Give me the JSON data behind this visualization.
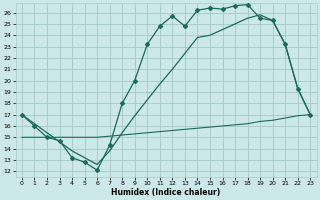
{
  "xlabel": "Humidex (Indice chaleur)",
  "bg_color": "#cde8e8",
  "grid_color": "#aacccc",
  "line_color": "#1a6b5a",
  "xlim": [
    -0.5,
    23.5
  ],
  "ylim": [
    11.5,
    26.8
  ],
  "xticks": [
    0,
    1,
    2,
    3,
    4,
    5,
    6,
    7,
    8,
    9,
    10,
    11,
    12,
    13,
    14,
    15,
    16,
    17,
    18,
    19,
    20,
    21,
    22,
    23
  ],
  "yticks": [
    12,
    13,
    14,
    15,
    16,
    17,
    18,
    19,
    20,
    21,
    22,
    23,
    24,
    25,
    26
  ],
  "curve1_x": [
    0,
    1,
    2,
    3,
    4,
    5,
    6,
    7,
    8,
    9,
    10,
    11,
    12,
    13,
    14,
    15,
    16,
    17,
    18,
    19,
    20,
    21,
    22,
    23
  ],
  "curve1_y": [
    17.0,
    16.0,
    15.0,
    14.7,
    13.2,
    12.8,
    12.1,
    14.3,
    18.0,
    20.0,
    23.2,
    24.8,
    25.7,
    24.8,
    26.2,
    26.4,
    26.3,
    26.6,
    26.7,
    25.5,
    25.3,
    23.2,
    19.3,
    17.0
  ],
  "curve2_x": [
    0,
    1,
    2,
    3,
    4,
    5,
    6,
    7,
    8,
    9,
    10,
    11,
    12,
    13,
    14,
    15,
    16,
    17,
    18,
    19,
    20,
    21,
    22,
    23
  ],
  "curve2_y": [
    17.0,
    16.2,
    15.4,
    14.6,
    13.8,
    13.2,
    12.6,
    13.8,
    15.4,
    16.9,
    18.3,
    19.7,
    21.0,
    22.4,
    23.8,
    24.0,
    24.5,
    25.0,
    25.5,
    25.8,
    25.3,
    23.2,
    19.3,
    17.0
  ],
  "curve3_x": [
    0,
    1,
    2,
    3,
    4,
    5,
    6,
    7,
    8,
    9,
    10,
    11,
    12,
    13,
    14,
    15,
    16,
    17,
    18,
    19,
    20,
    21,
    22,
    23
  ],
  "curve3_y": [
    15.0,
    15.0,
    15.0,
    15.0,
    15.0,
    15.0,
    15.0,
    15.1,
    15.2,
    15.3,
    15.4,
    15.5,
    15.6,
    15.7,
    15.8,
    15.9,
    16.0,
    16.1,
    16.2,
    16.4,
    16.5,
    16.7,
    16.9,
    17.0
  ]
}
